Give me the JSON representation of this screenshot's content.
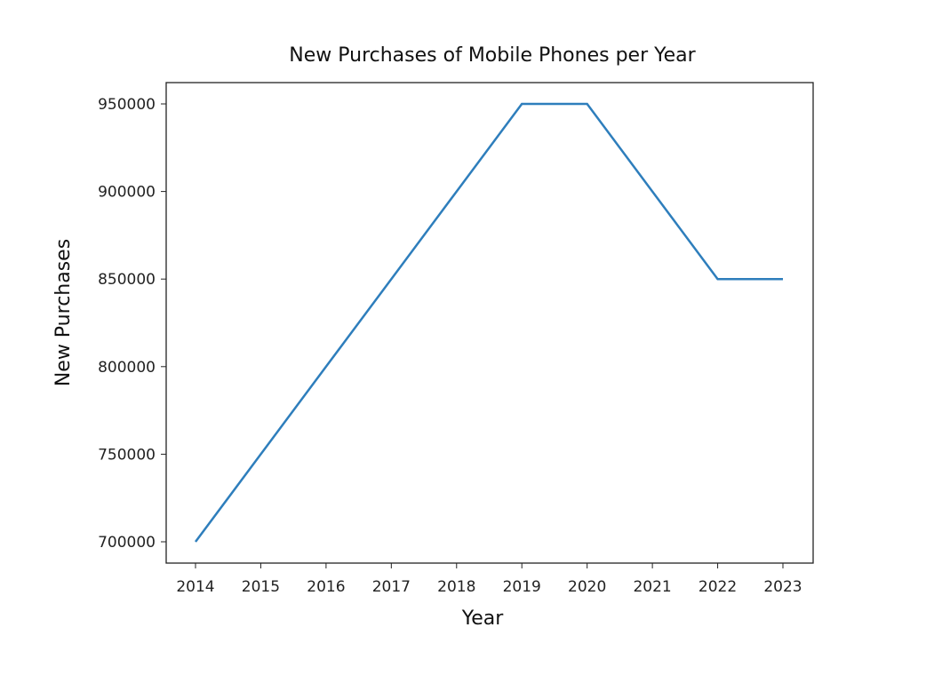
{
  "chart_data": {
    "type": "line",
    "title": "New Purchases of Mobile Phones per Year",
    "xlabel": "Year",
    "ylabel": "New Purchases",
    "x": [
      2014,
      2015,
      2016,
      2017,
      2018,
      2019,
      2020,
      2021,
      2022,
      2023
    ],
    "series": [
      {
        "name": "New Purchases",
        "color": "#2e7ebc",
        "values": [
          700000,
          750000,
          800000,
          850000,
          900000,
          950000,
          950000,
          900000,
          850000,
          850000
        ]
      }
    ],
    "xticks": [
      "2014",
      "2015",
      "2016",
      "2017",
      "2018",
      "2019",
      "2020",
      "2021",
      "2022",
      "2023"
    ],
    "yticks": [
      "700000",
      "750000",
      "800000",
      "850000",
      "900000",
      "950000"
    ],
    "ylim": [
      687500,
      962500
    ],
    "grid": false
  }
}
